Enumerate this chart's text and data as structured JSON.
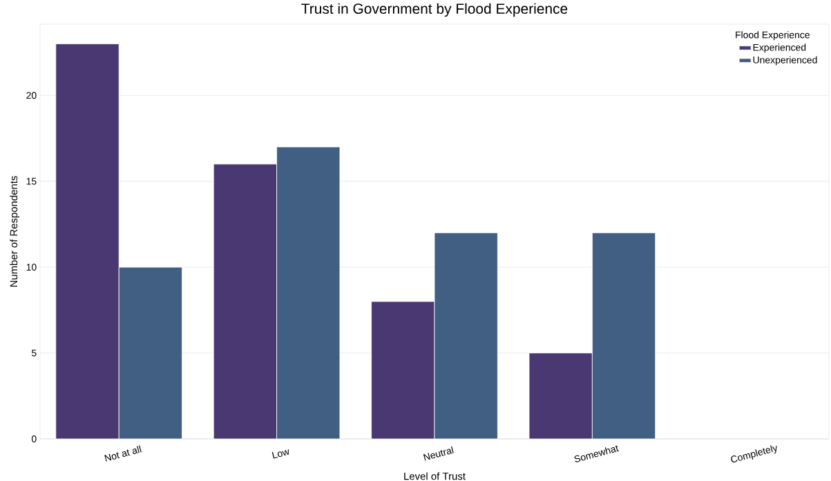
{
  "chart_data": {
    "type": "bar",
    "title": "Trust in Government by Flood Experience",
    "xlabel": "Level of Trust",
    "ylabel": "Number of Respondents",
    "legend_title": "Flood Experience",
    "categories": [
      "Not at all",
      "Low",
      "Neutral",
      "Somewhat",
      "Completely"
    ],
    "series": [
      {
        "name": "Experienced",
        "color": "#4a3872",
        "values": [
          23,
          16,
          8,
          5,
          null
        ]
      },
      {
        "name": "Unexperienced",
        "color": "#415f83",
        "values": [
          10,
          17,
          12,
          12,
          null
        ]
      }
    ],
    "ylim": [
      0,
      24.15
    ],
    "yticks": [
      0,
      5,
      10,
      15,
      20
    ],
    "grid": "y",
    "legend": "top right"
  }
}
